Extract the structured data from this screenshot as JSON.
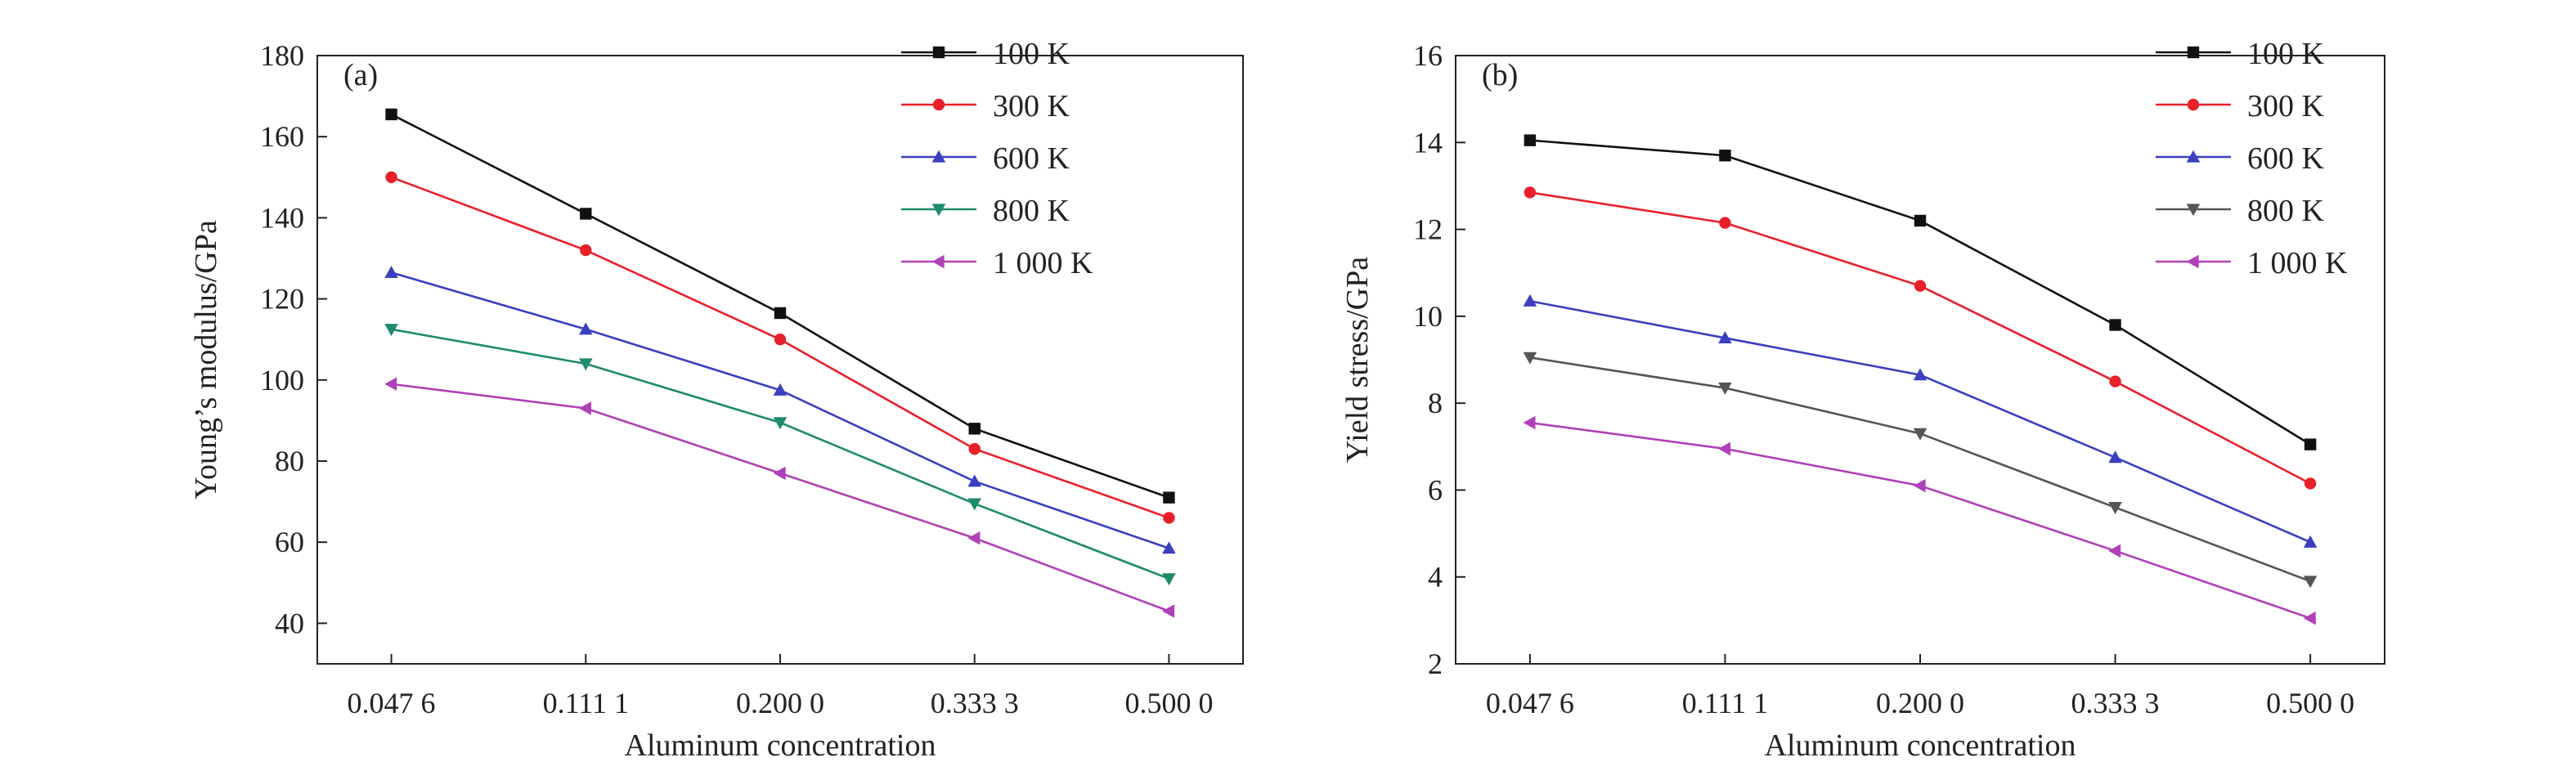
{
  "chart_data": [
    {
      "type": "line",
      "panel_label": "(a)",
      "ylabel": "Young’s modulus/GPa",
      "xlabel": "Aluminum concentration",
      "categories": [
        "0.047 6",
        "0.111 1",
        "0.200 0",
        "0.333 3",
        "0.500 0"
      ],
      "ylim": [
        30,
        180
      ],
      "yticks": [
        40,
        60,
        80,
        100,
        120,
        140,
        160,
        180
      ],
      "legend_position": "top-right",
      "series": [
        {
          "name": "100 K",
          "color": "#111111",
          "marker": "square",
          "values": [
            165.5,
            141,
            116.5,
            88,
            71
          ]
        },
        {
          "name": "300 K",
          "color": "#e8202a",
          "marker": "circle",
          "values": [
            150,
            132,
            110,
            83,
            66
          ]
        },
        {
          "name": "600 K",
          "color": "#3b3fc0",
          "marker": "triangle-up",
          "values": [
            126.5,
            112.5,
            97.5,
            75,
            58.5
          ]
        },
        {
          "name": "800 K",
          "color": "#1f8a6e",
          "marker": "triangle-down",
          "values": [
            112.5,
            104,
            89.5,
            69.5,
            51
          ]
        },
        {
          "name": "1 000 K",
          "color": "#b040b8",
          "marker": "triangle-left",
          "values": [
            99,
            93,
            77,
            61,
            43
          ]
        }
      ]
    },
    {
      "type": "line",
      "panel_label": "(b)",
      "ylabel": "Yield stress/GPa",
      "xlabel": "Aluminum concentration",
      "categories": [
        "0.047 6",
        "0.111 1",
        "0.200 0",
        "0.333 3",
        "0.500 0"
      ],
      "ylim": [
        2,
        16
      ],
      "yticks": [
        2,
        4,
        6,
        8,
        10,
        12,
        14,
        16
      ],
      "legend_position": "top-right",
      "series": [
        {
          "name": "100 K",
          "color": "#111111",
          "marker": "square",
          "values": [
            14.05,
            13.7,
            12.2,
            9.8,
            7.05
          ]
        },
        {
          "name": "300 K",
          "color": "#e8202a",
          "marker": "circle",
          "values": [
            12.85,
            12.15,
            10.7,
            8.5,
            6.15
          ]
        },
        {
          "name": "600 K",
          "color": "#3b3fc0",
          "marker": "triangle-up",
          "values": [
            10.35,
            9.5,
            8.65,
            6.75,
            4.8
          ]
        },
        {
          "name": "800 K",
          "color": "#555555",
          "marker": "triangle-down",
          "values": [
            9.05,
            8.35,
            7.3,
            5.6,
            3.9
          ]
        },
        {
          "name": "1 000 K",
          "color": "#b040b8",
          "marker": "triangle-left",
          "values": [
            7.55,
            6.95,
            6.1,
            4.6,
            3.05
          ]
        }
      ]
    }
  ]
}
